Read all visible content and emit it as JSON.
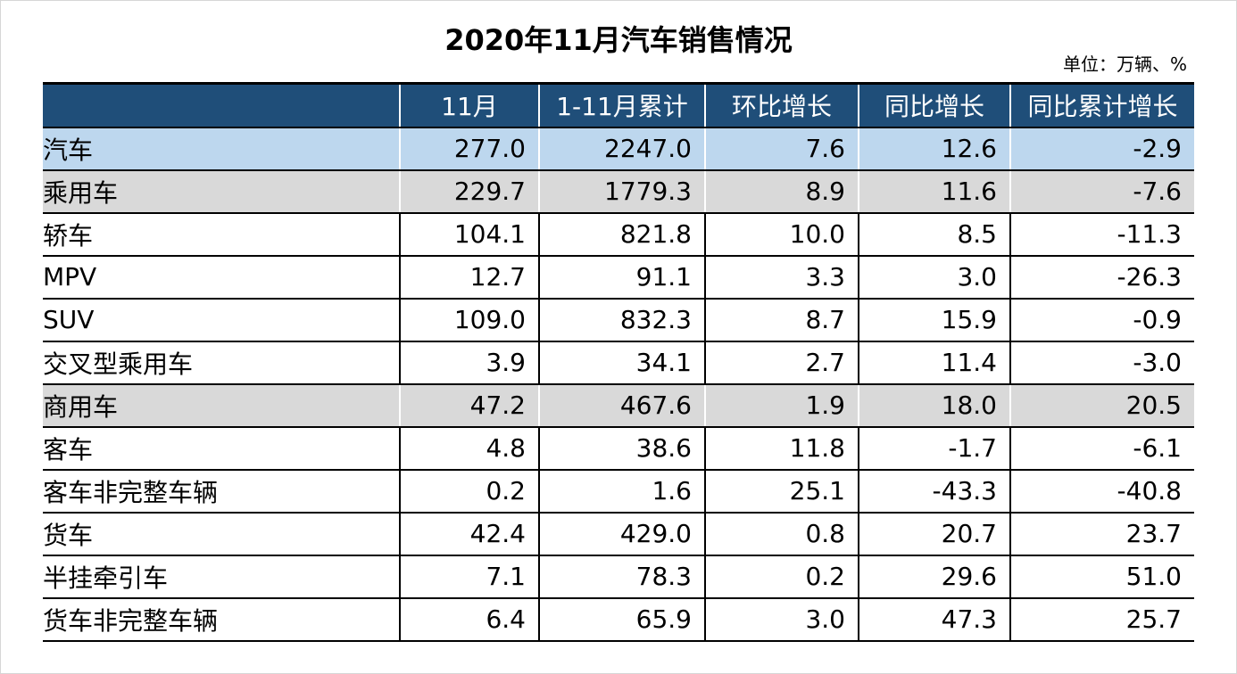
{
  "title": "2020年11月汽车销售情况",
  "unit": "单位：万辆、%",
  "columns": [
    "",
    "11月",
    "1-11月累计",
    "环比增长",
    "同比增长",
    "同比累计增长"
  ],
  "rows": [
    {
      "name": "汽车",
      "values": [
        "277.0",
        "2247.0",
        "7.6",
        "12.6",
        "-2.9"
      ]
    },
    {
      "name": "乘用车",
      "values": [
        "229.7",
        "1779.3",
        "8.9",
        "11.6",
        "-7.6"
      ]
    },
    {
      "name": "轿车",
      "values": [
        "104.1",
        "821.8",
        "10.0",
        "8.5",
        "-11.3"
      ]
    },
    {
      "name": "MPV",
      "values": [
        "12.7",
        "91.1",
        "3.3",
        "3.0",
        "-26.3"
      ]
    },
    {
      "name": "SUV",
      "values": [
        "109.0",
        "832.3",
        "8.7",
        "15.9",
        "-0.9"
      ]
    },
    {
      "name": "交叉型乘用车",
      "values": [
        "3.9",
        "34.1",
        "2.7",
        "11.4",
        "-3.0"
      ]
    },
    {
      "name": "商用车",
      "values": [
        "47.2",
        "467.6",
        "1.9",
        "18.0",
        "20.5"
      ]
    },
    {
      "name": "客车",
      "values": [
        "4.8",
        "38.6",
        "11.8",
        "-1.7",
        "-6.1"
      ]
    },
    {
      "name": "客车非完整车辆",
      "values": [
        "0.2",
        "1.6",
        "25.1",
        "-43.3",
        "-40.8"
      ]
    },
    {
      "name": "货车",
      "values": [
        "42.4",
        "429.0",
        "0.8",
        "20.7",
        "23.7"
      ]
    },
    {
      "name": "半挂牵引车",
      "values": [
        "7.1",
        "78.3",
        "0.2",
        "29.6",
        "51.0"
      ]
    },
    {
      "name": "货车非完整车辆",
      "values": [
        "6.4",
        "65.9",
        "3.0",
        "47.3",
        "25.7"
      ]
    }
  ]
}
